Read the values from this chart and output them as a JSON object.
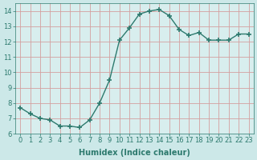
{
  "x": [
    0,
    1,
    2,
    3,
    4,
    5,
    6,
    7,
    8,
    9,
    10,
    11,
    12,
    13,
    14,
    15,
    16,
    17,
    18,
    19,
    20,
    21,
    22,
    23
  ],
  "y": [
    7.7,
    7.3,
    7.0,
    6.9,
    6.5,
    6.5,
    6.4,
    6.9,
    8.0,
    9.5,
    12.1,
    12.9,
    13.8,
    14.0,
    14.1,
    13.7,
    12.8,
    12.4,
    12.6,
    12.1,
    12.1,
    12.1,
    12.5,
    12.5
  ],
  "xlabel": "Humidex (Indice chaleur)",
  "xlim": [
    -0.5,
    23.5
  ],
  "ylim": [
    6,
    14.5
  ],
  "yticks": [
    6,
    7,
    8,
    9,
    10,
    11,
    12,
    13,
    14
  ],
  "xticks": [
    0,
    1,
    2,
    3,
    4,
    5,
    6,
    7,
    8,
    9,
    10,
    11,
    12,
    13,
    14,
    15,
    16,
    17,
    18,
    19,
    20,
    21,
    22,
    23
  ],
  "line_color": "#2d7a6e",
  "marker": "+",
  "marker_size": 4.0,
  "bg_color": "#cce8e8",
  "grid_color": "#d4a0a0",
  "axis_bg": "#d8eeee",
  "xlabel_fontsize": 7,
  "tick_fontsize": 6,
  "line_width": 1.0
}
